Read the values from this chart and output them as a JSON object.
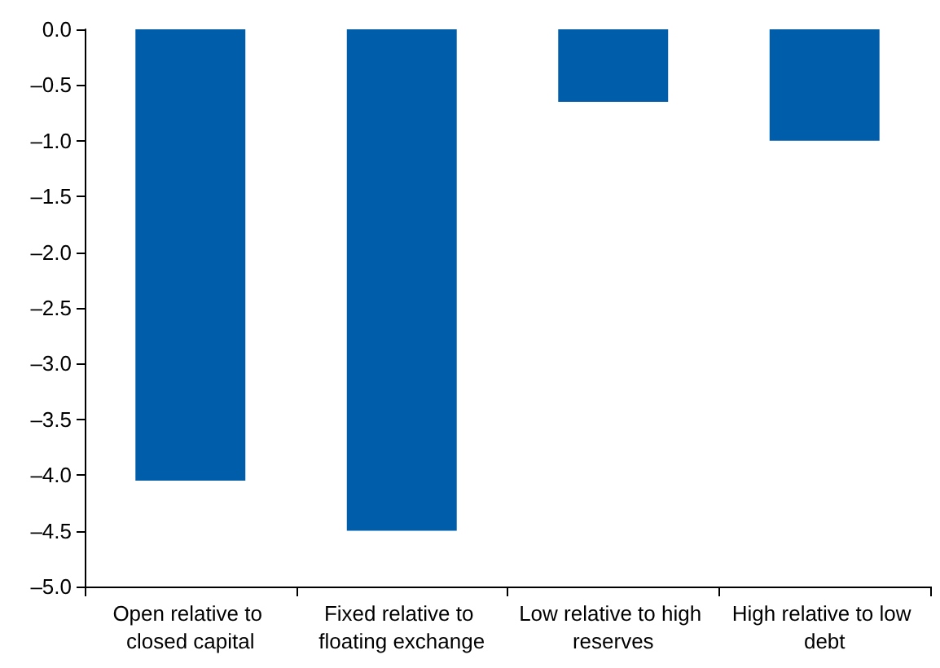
{
  "chart_data": {
    "type": "bar",
    "categories": [
      "Open relative to closed capital",
      "Fixed relative to floating exchange",
      "Low relative to high reserves",
      "High relative to low debt"
    ],
    "values": [
      -4.05,
      -4.5,
      -0.65,
      -1.0
    ],
    "color": "#005daa",
    "ylim": [
      -5.0,
      0.0
    ],
    "yticks": [
      {
        "value": 0,
        "label": "0.0"
      },
      {
        "value": -0.5,
        "label": "–0.5"
      },
      {
        "value": -1,
        "label": "–1.0"
      },
      {
        "value": -1.5,
        "label": "–1.5"
      },
      {
        "value": -2,
        "label": "–2.0"
      },
      {
        "value": -2.5,
        "label": "–2.5"
      },
      {
        "value": -3,
        "label": "–3.0"
      },
      {
        "value": -3.5,
        "label": "–3.5"
      },
      {
        "value": -4,
        "label": "–4.0"
      },
      {
        "value": -4.5,
        "label": "–4.5"
      },
      {
        "value": -5,
        "label": "–5.0"
      }
    ],
    "grid": false
  }
}
